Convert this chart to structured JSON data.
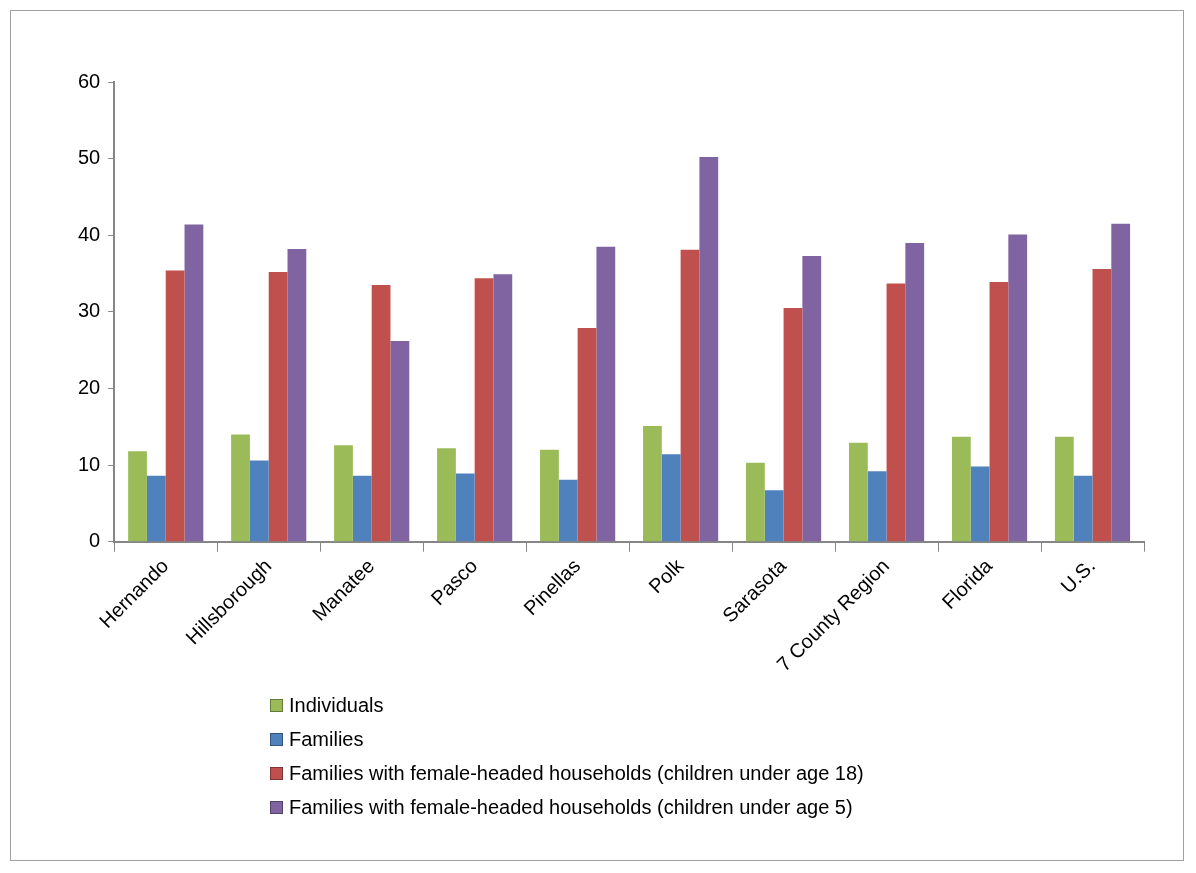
{
  "chart_data": {
    "type": "bar",
    "categories": [
      "Hernando",
      "Hillsborough",
      "Manatee",
      "Pasco",
      "Pinellas",
      "Polk",
      "Sarasota",
      "7 County Region",
      "Florida",
      "U.S."
    ],
    "series": [
      {
        "name": "Individuals",
        "color": "#9bbb59",
        "values": [
          11.8,
          14.0,
          12.6,
          12.2,
          12.0,
          15.1,
          10.3,
          12.9,
          13.7,
          13.7
        ]
      },
      {
        "name": "Families",
        "color": "#4f81bd",
        "values": [
          8.6,
          10.6,
          8.6,
          8.9,
          8.1,
          11.4,
          6.7,
          9.2,
          9.8,
          8.6
        ]
      },
      {
        "name": "Families with female-headed households (children under age 18)",
        "color": "#c0504d",
        "values": [
          35.4,
          35.2,
          33.5,
          34.4,
          27.9,
          38.1,
          30.5,
          33.7,
          33.9,
          35.6
        ]
      },
      {
        "name": "Families with female-headed households (children under age 5)",
        "color": "#8064a2",
        "values": [
          41.4,
          38.2,
          26.2,
          34.9,
          38.5,
          50.2,
          37.3,
          39.0,
          40.1,
          41.5
        ]
      }
    ],
    "ylim": [
      0,
      60
    ],
    "yticks": [
      0,
      10,
      20,
      30,
      40,
      50,
      60
    ],
    "grid": false,
    "legend": "bottom"
  }
}
